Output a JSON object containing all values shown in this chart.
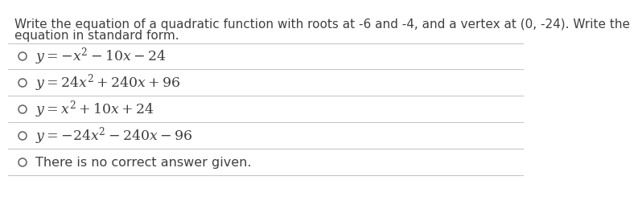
{
  "background_color": "#ffffff",
  "question_line1": "Write the equation of a quadratic function with roots at -6 and -4, and a vertex at (0, -24). Write the",
  "question_line2": "equation in standard form.",
  "option_texts": [
    "$y = -x^{2} - 10x - 24$",
    "$y = 24x^{2} + 240x + 96$",
    "$y = x^{2} + 10x + 24$",
    "$y = -24x^{2} - 240x - 96$",
    "There is no correct answer given."
  ],
  "divider_color": "#c8c8c8",
  "text_color": "#404040",
  "circle_color": "#606060",
  "question_fontsize": 11.0,
  "option_fontsize": 12.5,
  "last_option_fontsize": 11.5
}
